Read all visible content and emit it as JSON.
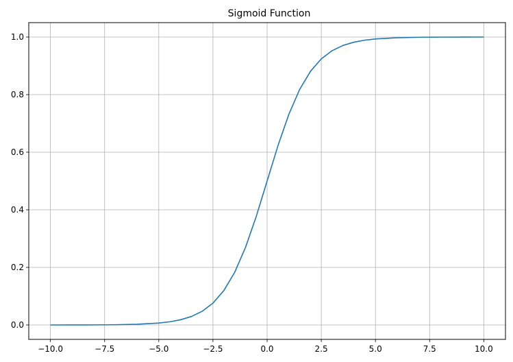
{
  "chart_data": {
    "type": "line",
    "title": "Sigmoid Function",
    "xlabel": "",
    "ylabel": "",
    "xlim": [
      -11.0,
      11.0
    ],
    "ylim": [
      -0.05,
      1.05
    ],
    "grid": true,
    "x_ticks": [
      -10.0,
      -7.5,
      -5.0,
      -2.5,
      0.0,
      2.5,
      5.0,
      7.5,
      10.0
    ],
    "x_tick_labels": [
      "−10.0",
      "−7.5",
      "−5.0",
      "−2.5",
      "0.0",
      "2.5",
      "5.0",
      "7.5",
      "10.0"
    ],
    "y_ticks": [
      0.0,
      0.2,
      0.4,
      0.6,
      0.8,
      1.0
    ],
    "y_tick_labels": [
      "0.0",
      "0.2",
      "0.4",
      "0.6",
      "0.8",
      "1.0"
    ],
    "series": [
      {
        "color": "#1f77b4",
        "x": [
          -10,
          -9,
          -8,
          -7,
          -6,
          -5,
          -4.5,
          -4,
          -3.5,
          -3,
          -2.5,
          -2,
          -1.5,
          -1,
          -0.5,
          0,
          0.5,
          1,
          1.5,
          2,
          2.5,
          3,
          3.5,
          4,
          4.5,
          5,
          6,
          7,
          8,
          9,
          10
        ],
        "y": [
          0.0,
          0.0001,
          0.0003,
          0.0009,
          0.0025,
          0.0067,
          0.011,
          0.018,
          0.0293,
          0.0474,
          0.0759,
          0.1192,
          0.1824,
          0.2689,
          0.3775,
          0.5,
          0.6225,
          0.7311,
          0.8176,
          0.8808,
          0.9241,
          0.9526,
          0.9707,
          0.982,
          0.989,
          0.9933,
          0.9975,
          0.9991,
          0.9997,
          0.9999,
          1.0
        ]
      }
    ]
  },
  "colors": {
    "axis": "#000000",
    "grid": "#b0b0b0",
    "line": "#1f77b4"
  }
}
